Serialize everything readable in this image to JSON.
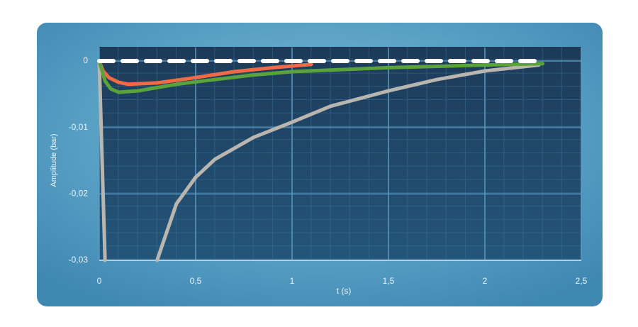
{
  "chart_data": {
    "type": "line",
    "x_label": "t (s)",
    "y_label": "Amplitude (bar)",
    "xlim": [
      0,
      2.5
    ],
    "ylim": [
      -0.03,
      0.002
    ],
    "xticks": [
      0,
      {
        "value": 0.5,
        "label": "0,5"
      },
      1,
      {
        "value": 1.5,
        "label": "1,5"
      },
      2,
      {
        "value": 2.5,
        "label": "2,5"
      }
    ],
    "yticks": [
      0,
      {
        "value": -0.01,
        "label": "-0,01"
      },
      {
        "value": -0.02,
        "label": "-0,02"
      },
      {
        "value": -0.03,
        "label": "-0,03"
      }
    ],
    "grid": true,
    "series": [
      {
        "color": "#b9b6b0",
        "dashed": false,
        "x": [
          0,
          0.01,
          0.02,
          0.03,
          0.15,
          0.3,
          0.4,
          0.5,
          0.6,
          0.8,
          1.0,
          1.2,
          1.5,
          1.75,
          2.0,
          2.28
        ],
        "values": [
          0,
          -0.01,
          -0.02,
          -0.03,
          null,
          -0.03,
          -0.0215,
          -0.0175,
          -0.0148,
          -0.0115,
          -0.0092,
          -0.0068,
          -0.0045,
          -0.0028,
          -0.0015,
          -0.0006
        ]
      },
      {
        "color": "#f26a45",
        "dashed": false,
        "x": [
          0,
          0.02,
          0.05,
          0.1,
          0.15,
          0.3,
          0.5,
          0.7,
          0.9,
          1.1
        ],
        "values": [
          0,
          -0.0015,
          -0.0025,
          -0.0032,
          -0.0035,
          -0.0033,
          -0.0025,
          -0.0016,
          -0.001,
          -0.0005
        ]
      },
      {
        "color": "#5aa33a",
        "dashed": false,
        "x": [
          0,
          0.03,
          0.06,
          0.1,
          0.2,
          0.4,
          0.6,
          0.8,
          1.0,
          1.5,
          2.0,
          2.3
        ],
        "values": [
          0,
          -0.003,
          -0.0042,
          -0.0047,
          -0.0045,
          -0.0035,
          -0.0028,
          -0.0021,
          -0.0016,
          -0.001,
          -0.0006,
          -0.0004
        ]
      },
      {
        "color": "#ffffff",
        "dashed": true,
        "x": [
          0,
          2.3
        ],
        "values": [
          0,
          0
        ]
      }
    ]
  }
}
